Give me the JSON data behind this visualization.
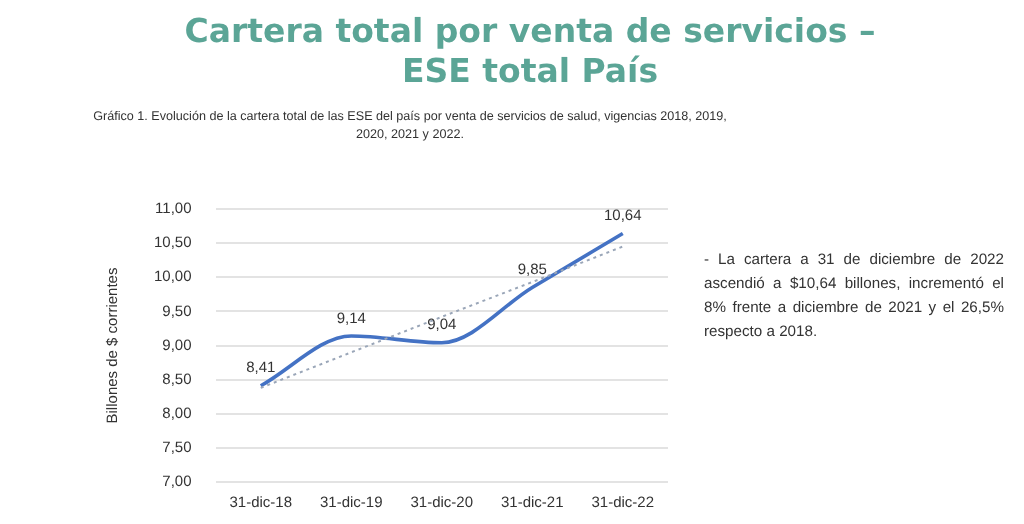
{
  "chart_data": {
    "type": "line",
    "title": "Cartera total por venta de servicios –ESE total País",
    "subtitle": "Gráfico 1. Evolución de la cartera total de las ESE del país por venta de servicios de salud, vigencias 2018, 2019, 2020, 2021 y 2022.",
    "ylabel": "Billones de $ corrientes",
    "categories": [
      "31-dic-18",
      "31-dic-19",
      "31-dic-20",
      "31-dic-21",
      "31-dic-22"
    ],
    "series": [
      {
        "color": "#4472c4",
        "values": [
          8.41,
          9.14,
          9.04,
          9.85,
          10.64
        ],
        "value_labels": [
          "8,41",
          "9,14",
          "9,04",
          "9,85",
          "10,64"
        ]
      },
      {
        "color": "#9aa6b8",
        "values": [
          8.38,
          8.9,
          9.42,
          9.93,
          10.45
        ],
        "line_style": "dotted"
      }
    ],
    "ylim": [
      7,
      11
    ],
    "yticks": [
      {
        "value": 7,
        "label": "7,00"
      },
      {
        "value": 7.5,
        "label": "7,50"
      },
      {
        "value": 8,
        "label": "8,00"
      },
      {
        "value": 8.5,
        "label": "8,50"
      },
      {
        "value": 9,
        "label": "9,00"
      },
      {
        "value": 9.5,
        "label": "9,50"
      },
      {
        "value": 10,
        "label": "10,00"
      },
      {
        "value": 10.5,
        "label": "10,50"
      },
      {
        "value": 11,
        "label": "11,00"
      }
    ],
    "grid": "y",
    "legend": false,
    "marker": "none",
    "annotations": [
      "- La cartera a 31 de diciembre de 2022 ascendió a $10,64 billones, incrementó el 8% frente a diciembre de 2021 y el 26,5% respecto a 2018."
    ]
  }
}
